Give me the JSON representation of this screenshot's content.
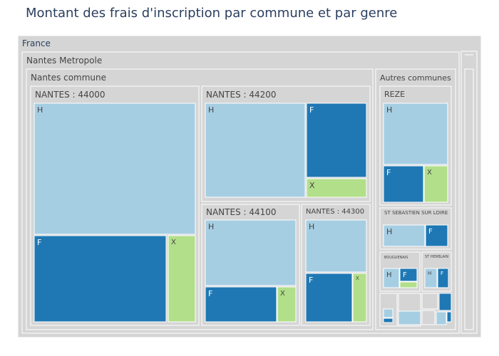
{
  "chart_data": {
    "type": "treemap",
    "title": "Montant des frais d'inscription par commune et par genre",
    "root": "France",
    "colors": {
      "H": "#a6cee3",
      "F": "#1f78b4",
      "X": "#b2df8a",
      "group": "#d5d5d5"
    },
    "tree": {
      "label": "France",
      "children": [
        {
          "label": "Nantes Metropole",
          "children": [
            {
              "label": "Nantes commune",
              "children": [
                {
                  "label": "NANTES : 44000",
                  "leaves": [
                    {
                      "label": "H",
                      "value": 49
                    },
                    {
                      "label": "F",
                      "value": 26
                    },
                    {
                      "label": "X",
                      "value": 6
                    }
                  ]
                },
                {
                  "label": "NANTES : 44200",
                  "leaves": [
                    {
                      "label": "H",
                      "value": 18
                    },
                    {
                      "label": "F",
                      "value": 11
                    },
                    {
                      "label": "X",
                      "value": 3
                    }
                  ]
                },
                {
                  "label": "NANTES : 44100",
                  "leaves": [
                    {
                      "label": "H",
                      "value": 13
                    },
                    {
                      "label": "F",
                      "value": 6
                    },
                    {
                      "label": "X",
                      "value": 1.5
                    }
                  ]
                },
                {
                  "label": "NANTES : 44300",
                  "leaves": [
                    {
                      "label": "H",
                      "value": 6
                    },
                    {
                      "label": "F",
                      "value": 5
                    },
                    {
                      "label": "X",
                      "value": 1.5
                    }
                  ]
                }
              ]
            },
            {
              "label": "Autres communes",
              "children": [
                {
                  "label": "REZE",
                  "leaves": [
                    {
                      "label": "H",
                      "value": 7
                    },
                    {
                      "label": "F",
                      "value": 4
                    },
                    {
                      "label": "X",
                      "value": 2.5
                    }
                  ]
                },
                {
                  "label": "ST SEBASTIEN SUR LOIRE",
                  "leaves": [
                    {
                      "label": "H",
                      "value": 2.5
                    },
                    {
                      "label": "F",
                      "value": 1.4
                    }
                  ]
                },
                {
                  "label": "BOUGUENAIS",
                  "leaves": [
                    {
                      "label": "H",
                      "value": 0.8
                    },
                    {
                      "label": "F",
                      "value": 0.7
                    },
                    {
                      "label": "X",
                      "value": 0.2
                    }
                  ]
                },
                {
                  "label": "ST HERBLAIN",
                  "leaves": [
                    {
                      "label": "H",
                      "value": 0.6
                    },
                    {
                      "label": "F",
                      "value": 0.4
                    }
                  ]
                }
              ]
            }
          ]
        }
      ]
    }
  }
}
